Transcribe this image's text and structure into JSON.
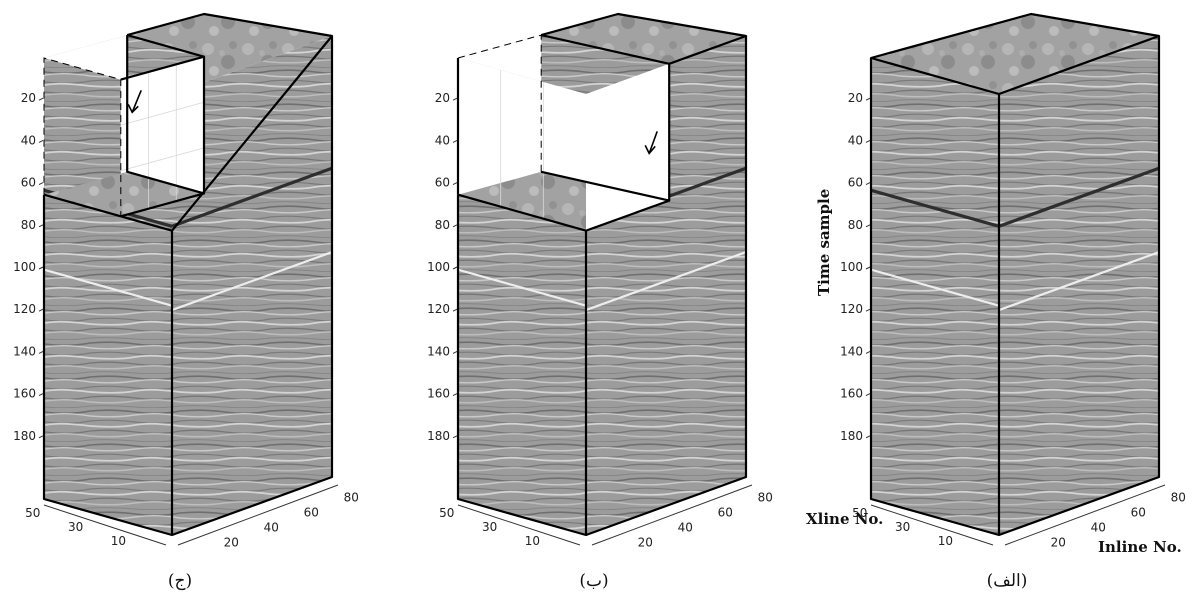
{
  "axes": {
    "time_label": "Time sample",
    "xline_label": "Xline No.",
    "inline_label": "Inline No.",
    "time_ticks": [
      "20",
      "40",
      "60",
      "80",
      "100",
      "120",
      "140",
      "160",
      "180"
    ],
    "xline_ticks": [
      "50",
      "30",
      "10"
    ],
    "inline_ticks": [
      "80",
      "60",
      "40",
      "20"
    ]
  },
  "panels": [
    {
      "id": "c",
      "caption": "(ج)"
    },
    {
      "id": "b",
      "caption": "(ب)"
    },
    {
      "id": "a",
      "caption": "(الف)"
    }
  ],
  "colors": {
    "seismic_mid": "#9c9c9c",
    "seismic_dark": "#2e2e2e",
    "seismic_light": "#ededed",
    "edge": "#000000"
  }
}
